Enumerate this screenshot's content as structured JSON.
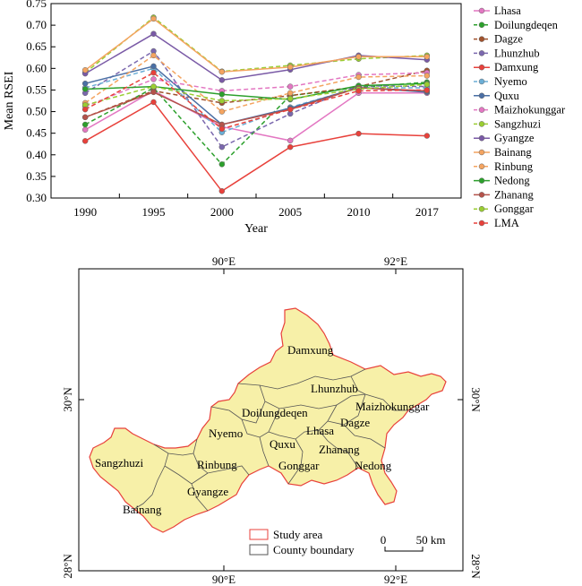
{
  "chart_data": {
    "type": "line",
    "ylabel": "Mean RSEI",
    "xlabel": "Year",
    "categories": [
      "1990",
      "1995",
      "2000",
      "2005",
      "2010",
      "2017"
    ],
    "ylim": [
      0.3,
      0.75
    ],
    "yticks": [
      "0.30",
      "0.35",
      "0.40",
      "0.45",
      "0.50",
      "0.55",
      "0.60",
      "0.65",
      "0.70",
      "0.75"
    ],
    "grid": false,
    "legend_position": "right",
    "series": [
      {
        "name": "Lhasa",
        "color": "#e377c2",
        "dashed": false,
        "values": [
          0.458,
          0.548,
          0.465,
          0.433,
          0.543,
          0.543
        ]
      },
      {
        "name": "Doilungdeqen",
        "color": "#2ca02c",
        "dashed": true,
        "values": [
          0.47,
          0.555,
          0.378,
          0.537,
          0.556,
          0.568
        ]
      },
      {
        "name": "Dagze",
        "color": "#a0522d",
        "dashed": true,
        "values": [
          0.487,
          0.548,
          0.52,
          0.537,
          0.558,
          0.595
        ]
      },
      {
        "name": "Lhunzhub",
        "color": "#7b68ae",
        "dashed": true,
        "values": [
          0.543,
          0.64,
          0.418,
          0.495,
          0.56,
          0.558
        ]
      },
      {
        "name": "Damxung",
        "color": "#e8413b",
        "dashed": false,
        "values": [
          0.432,
          0.522,
          0.316,
          0.418,
          0.449,
          0.444
        ]
      },
      {
        "name": "Nyemo",
        "color": "#6baed6",
        "dashed": true,
        "values": [
          0.555,
          0.6,
          0.452,
          0.51,
          0.555,
          0.555
        ]
      },
      {
        "name": "Quxu",
        "color": "#4a6fa5",
        "dashed": false,
        "values": [
          0.565,
          0.605,
          0.47,
          0.508,
          0.556,
          0.545
        ]
      },
      {
        "name": "Maizhokunggar",
        "color": "#e377c2",
        "dashed": true,
        "values": [
          0.512,
          0.575,
          0.548,
          0.558,
          0.585,
          0.59
        ]
      },
      {
        "name": "Sangzhuzi",
        "color": "#9acd32",
        "dashed": true,
        "values": [
          0.59,
          0.718,
          0.593,
          0.607,
          0.622,
          0.63
        ]
      },
      {
        "name": "Gyangze",
        "color": "#7a5aa6",
        "dashed": false,
        "values": [
          0.588,
          0.68,
          0.573,
          0.597,
          0.63,
          0.62
        ]
      },
      {
        "name": "Bainang",
        "color": "#f4a460",
        "dashed": false,
        "values": [
          0.596,
          0.715,
          0.592,
          0.603,
          0.627,
          0.627
        ]
      },
      {
        "name": "Rinbung",
        "color": "#f4a460",
        "dashed": true,
        "values": [
          0.52,
          0.63,
          0.5,
          0.543,
          0.58,
          0.583
        ]
      },
      {
        "name": "Nedong",
        "color": "#2ca02c",
        "dashed": false,
        "values": [
          0.552,
          0.558,
          0.54,
          0.528,
          0.56,
          0.565
        ]
      },
      {
        "name": "Zhanang",
        "color": "#b5524a",
        "dashed": false,
        "values": [
          0.487,
          0.545,
          0.47,
          0.505,
          0.555,
          0.548
        ]
      },
      {
        "name": "Gonggar",
        "color": "#9acd32",
        "dashed": true,
        "values": [
          0.515,
          0.558,
          0.525,
          0.53,
          0.552,
          0.563
        ]
      },
      {
        "name": "LMA",
        "color": "#e8413b",
        "dashed": true,
        "values": [
          0.505,
          0.59,
          0.46,
          0.505,
          0.548,
          0.55
        ]
      }
    ]
  },
  "map": {
    "top_axis": [
      "90°E",
      "92°E"
    ],
    "bottom_axis": [
      "90°E",
      "92°E"
    ],
    "left_axis": [
      "30°N",
      "28°N"
    ],
    "right_axis": [
      "30°N",
      "28°N"
    ],
    "counties": [
      "Damxung",
      "Lhunzhub",
      "Maizhokunggar",
      "Doilungdeqen",
      "Dagze",
      "Nyemo",
      "Lhasa",
      "Quxu",
      "Zhanang",
      "Sangzhuzi",
      "Rinbung",
      "Gonggar",
      "Nedong",
      "Gyangze",
      "Bainang"
    ],
    "fill_color": "#f7f0a8",
    "boundary_color": "#e8413b",
    "county_line_color": "#555555",
    "legend": {
      "study_area": "Study area",
      "county_boundary": "County boundary"
    },
    "scale_bar": {
      "start": "0",
      "end": "50 km"
    }
  }
}
